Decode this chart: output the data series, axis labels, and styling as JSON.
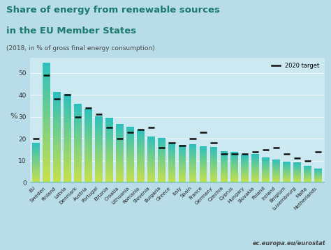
{
  "countries": [
    "EU",
    "Sweden",
    "Finland",
    "Latvia",
    "Denmark",
    "Austria",
    "Portugal",
    "Estonia",
    "Croatia",
    "Lithuania",
    "Romania",
    "Slovenia",
    "Bulgaria",
    "Greece",
    "Italy",
    "Spain",
    "France",
    "Germany",
    "Czechia",
    "Cyprus",
    "Hungary",
    "Slovakia",
    "Poland",
    "Ireland",
    "Belgium",
    "Luxembourg",
    "Malta",
    "Netherlands"
  ],
  "values": [
    18.0,
    54.6,
    41.2,
    40.3,
    35.8,
    33.6,
    30.3,
    29.5,
    26.6,
    25.5,
    24.3,
    21.1,
    20.5,
    17.7,
    17.1,
    17.4,
    16.6,
    16.1,
    14.4,
    13.9,
    12.6,
    12.9,
    11.3,
    10.6,
    9.4,
    9.1,
    7.7,
    6.4
  ],
  "targets": [
    20.0,
    49.0,
    38.0,
    40.0,
    30.0,
    34.0,
    31.0,
    25.0,
    20.0,
    23.0,
    24.0,
    25.0,
    16.0,
    18.0,
    17.0,
    20.0,
    23.0,
    18.0,
    13.0,
    13.0,
    13.0,
    14.0,
    15.0,
    16.0,
    13.0,
    11.0,
    10.0,
    14.0
  ],
  "title_line1": "Share of energy from renewable sources",
  "title_line2": "in the EU Member States",
  "subtitle": "(2018, in % of gross final energy consumption)",
  "ylabel": "%",
  "legend_label": "2020 target",
  "bg_top_color": "#b8dde8",
  "bg_chart_color": "#cce8f0",
  "bar_color_top": "#2bbfbf",
  "bar_color_bottom": "#c8e04a",
  "target_color": "#111111",
  "axis_line_color": "#2aaa8a",
  "title_color": "#1a7a6e",
  "subtitle_color": "#444444",
  "watermark": "ec.europa.eu/eurostat",
  "ylim": [
    0,
    57
  ],
  "yticks": [
    0,
    10,
    20,
    30,
    40,
    50
  ]
}
